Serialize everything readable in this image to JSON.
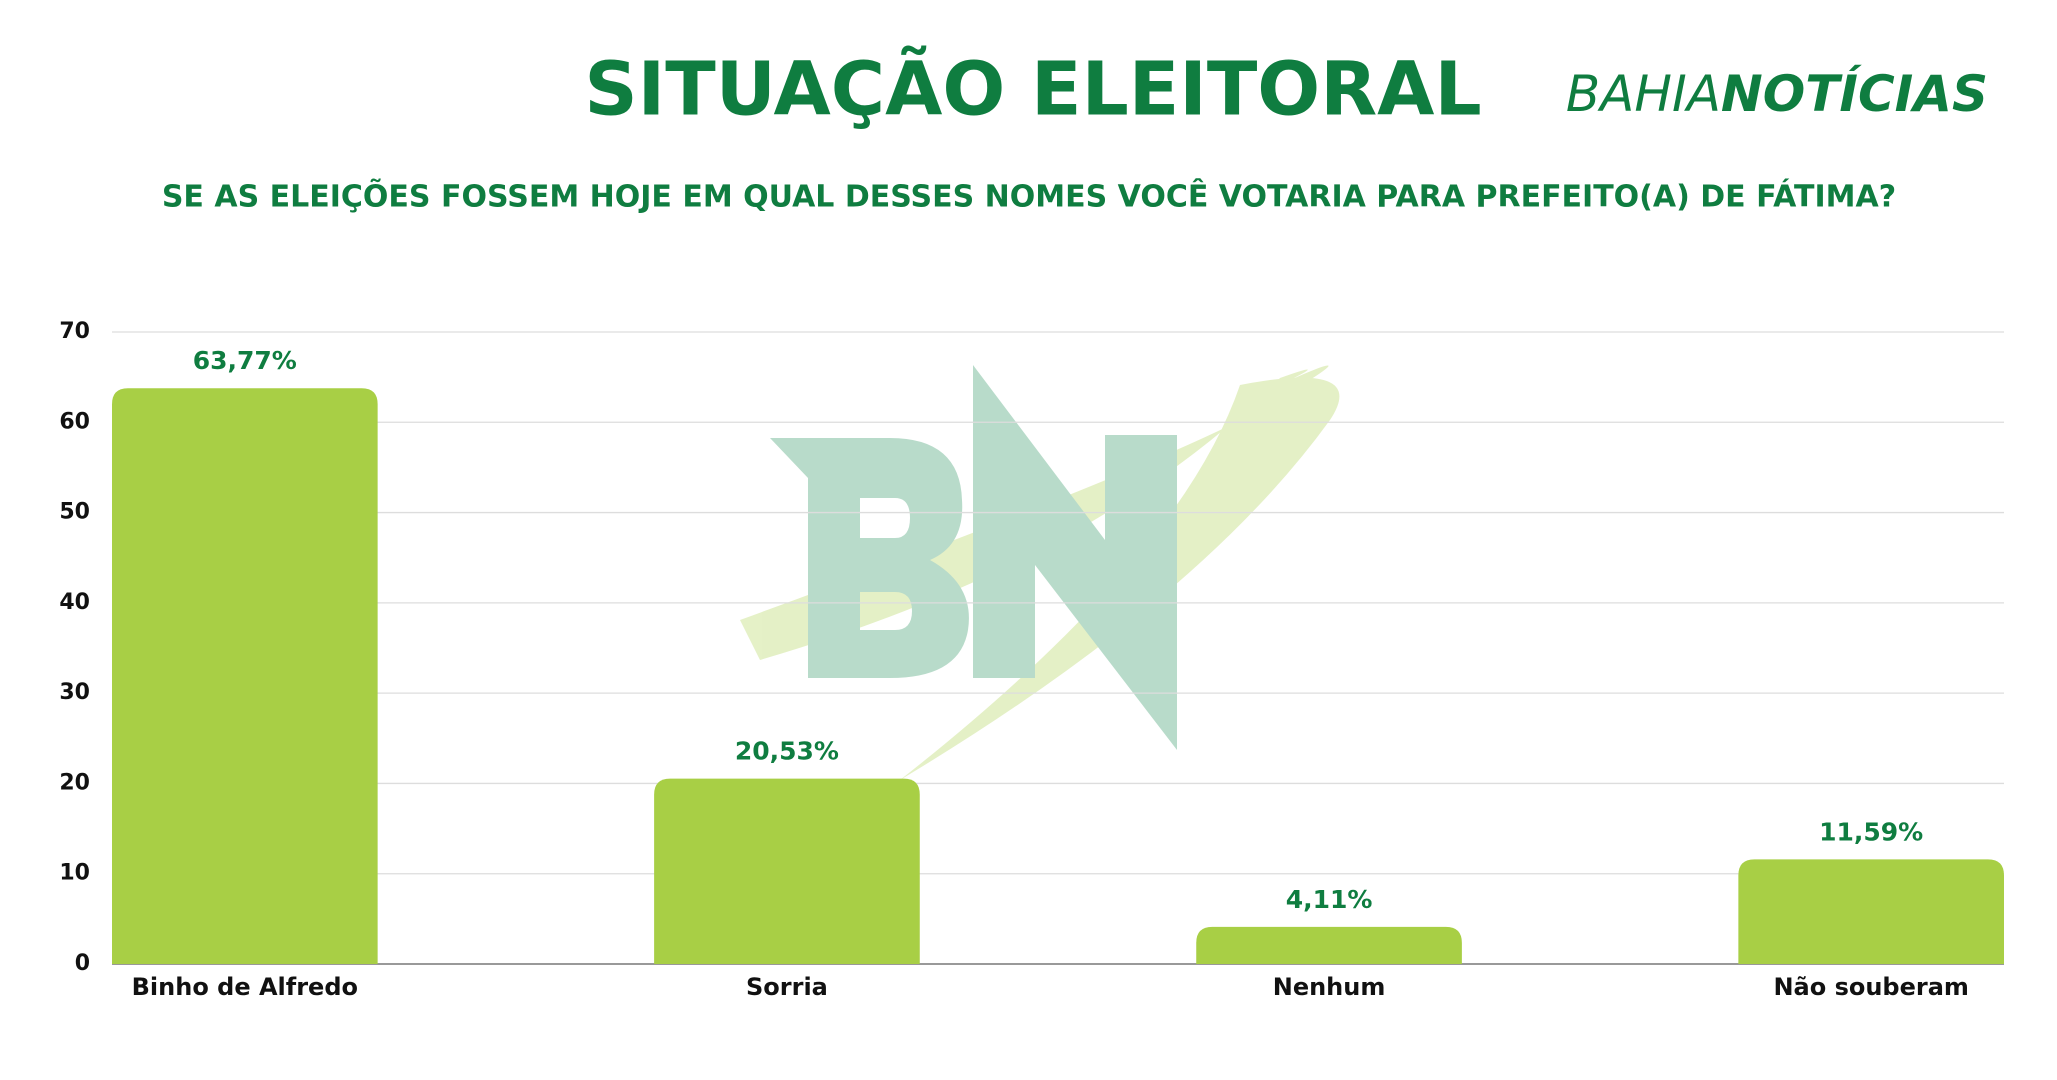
{
  "brand": {
    "left": "BAHIA",
    "right": "NOTÍCIAS"
  },
  "chart_data": {
    "type": "bar",
    "title": "SITUAÇÃO ELEITORAL",
    "subtitle": "SE AS ELEIÇÕES FOSSEM HOJE EM QUAL DESSES NOMES VOCÊ VOTARIA PARA PREFEITO(A) DE FÁTIMA?",
    "categories": [
      "Binho de Alfredo",
      "Sorria",
      "Nenhum",
      "Não souberam"
    ],
    "values": [
      63.77,
      20.53,
      4.11,
      11.59
    ],
    "value_labels": [
      "63,77%",
      "20,53%",
      "4,11%",
      "11,59%"
    ],
    "color": "#a8cf45",
    "ylim": [
      0,
      70
    ],
    "yticks": [
      0,
      10,
      20,
      30,
      40,
      50,
      60,
      70
    ],
    "grid": true
  }
}
